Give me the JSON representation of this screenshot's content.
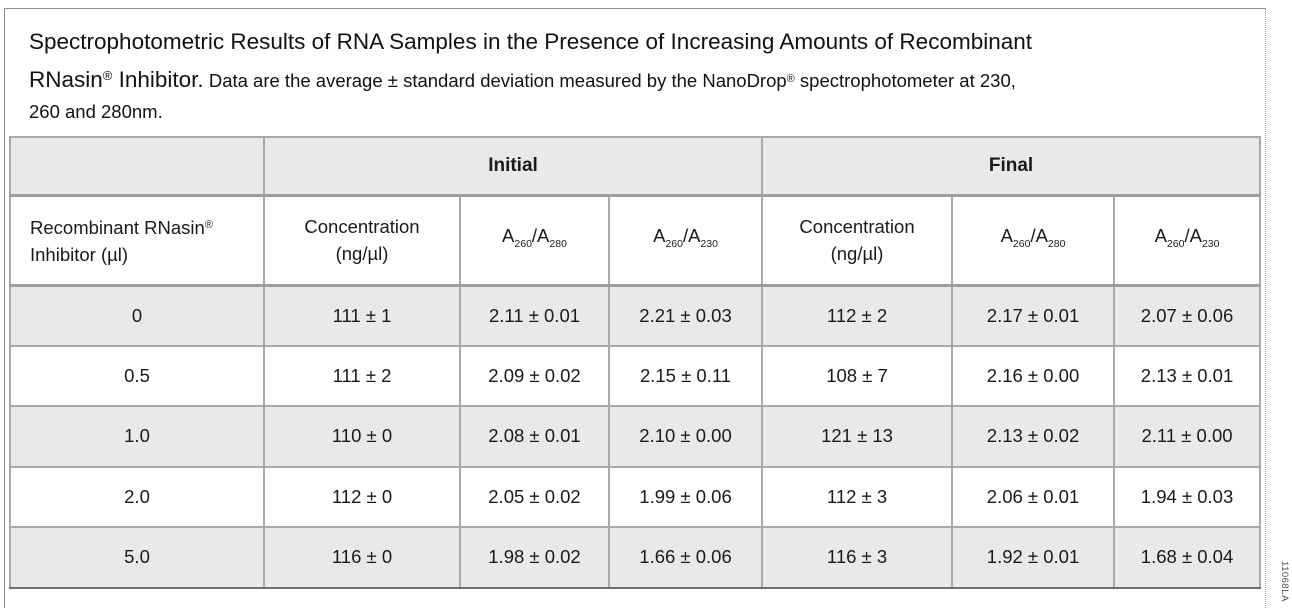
{
  "title": {
    "line1": "Spectrophotometric Results of RNA Samples in the Presence of Increasing Amounts of Recombinant",
    "line2_big_pre": "RNasin",
    "line2_big_reg": "®",
    "line2_big_post": " Inhibitor.",
    "line2_small_pre": " Data are the average ± standard deviation measured by the NanoDrop",
    "line2_small_reg": "®",
    "line2_small_post": " spectrophotometer at 230,",
    "line3": "260 and 280nm."
  },
  "table": {
    "group_headers": {
      "initial": "Initial",
      "final": "Final"
    },
    "columns": {
      "inhibitor": {
        "line1_pre": "Recombinant RNasin",
        "reg": "®",
        "line2": "Inhibitor (µl)"
      },
      "concentration": {
        "line1": "Concentration",
        "line2": "(ng/µl)"
      },
      "ratio_260_280": {
        "base1": "A",
        "sub1": "260",
        "base2": "/A",
        "sub2": "280"
      },
      "ratio_260_230": {
        "base1": "A",
        "sub1": "260",
        "base2": "/A",
        "sub2": "230"
      }
    },
    "rows": [
      {
        "inhibitor": "0",
        "initial_conc": "111 ± 1",
        "initial_a260_a280": "2.11 ± 0.01",
        "initial_a260_a230": "2.21 ± 0.03",
        "final_conc": "112 ± 2",
        "final_a260_a280": "2.17 ± 0.01",
        "final_a260_a230": "2.07 ± 0.06"
      },
      {
        "inhibitor": "0.5",
        "initial_conc": "111 ± 2",
        "initial_a260_a280": "2.09 ± 0.02",
        "initial_a260_a230": "2.15 ± 0.11",
        "final_conc": "108 ± 7",
        "final_a260_a280": "2.16 ± 0.00",
        "final_a260_a230": "2.13 ± 0.01"
      },
      {
        "inhibitor": "1.0",
        "initial_conc": "110 ± 0",
        "initial_a260_a280": "2.08 ± 0.01",
        "initial_a260_a230": "2.10 ± 0.00",
        "final_conc": "121 ± 13",
        "final_a260_a280": "2.13 ± 0.02",
        "final_a260_a230": "2.11 ± 0.00"
      },
      {
        "inhibitor": "2.0",
        "initial_conc": "112 ± 0",
        "initial_a260_a280": "2.05 ± 0.02",
        "initial_a260_a230": "1.99 ± 0.06",
        "final_conc": "112 ± 3",
        "final_a260_a280": "2.06 ± 0.01",
        "final_a260_a230": "1.94 ± 0.03"
      },
      {
        "inhibitor": "5.0",
        "initial_conc": "116 ± 0",
        "initial_a260_a280": "1.98 ± 0.02",
        "initial_a260_a230": "1.66 ± 0.06",
        "final_conc": "116 ± 3",
        "final_a260_a280": "1.92 ± 0.01",
        "final_a260_a230": "1.68 ± 0.04"
      }
    ]
  },
  "side_label": "11068LA",
  "colors": {
    "row_shade": "#e9e9e9",
    "cell_border": "#a9a9a9"
  }
}
